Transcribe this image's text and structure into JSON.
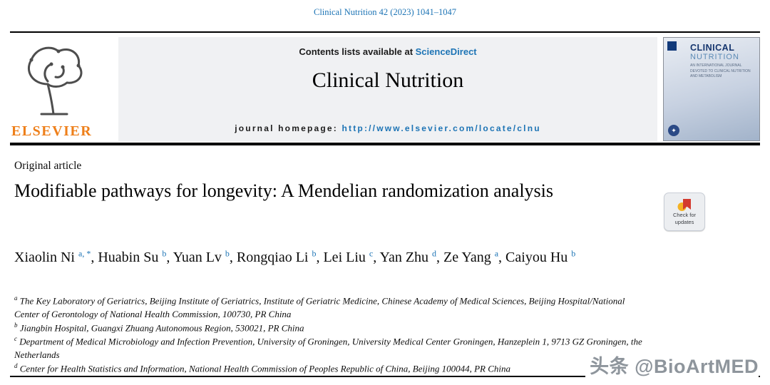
{
  "colors": {
    "accent": "#1d74b5",
    "elsevier_orange": "#ee7f1a",
    "watermark_gray": "#8e959c"
  },
  "header": {
    "citation": "Clinical Nutrition 42 (2023) 1041–1047"
  },
  "masthead": {
    "contents_prefix": "Contents lists available at ",
    "sciencedirect_link": "ScienceDirect",
    "journal_title": "Clinical Nutrition",
    "homepage_label": "journal homepage: ",
    "homepage_url": "http://www.elsevier.com/locate/clnu",
    "elsevier_wordmark": "ELSEVIER"
  },
  "cover": {
    "title_line1": "CLINICAL",
    "title_line2": "NUTRITION",
    "tagline": "AN INTERNATIONAL JOURNAL DEVOTED TO CLINICAL NUTRITION AND METABOLISM"
  },
  "crossmark": {
    "line1": "Check for",
    "line2": "updates"
  },
  "article": {
    "type_label": "Original article",
    "title": "Modifiable pathways for longevity: A Mendelian randomization analysis",
    "authors": [
      {
        "name": "Xiaolin Ni",
        "sup": "a, *"
      },
      {
        "name": "Huabin Su",
        "sup": "b"
      },
      {
        "name": "Yuan Lv",
        "sup": "b"
      },
      {
        "name": "Rongqiao Li",
        "sup": "b"
      },
      {
        "name": "Lei Liu",
        "sup": "c"
      },
      {
        "name": "Yan Zhu",
        "sup": "d"
      },
      {
        "name": "Ze Yang",
        "sup": "a"
      },
      {
        "name": "Caiyou Hu",
        "sup": "b"
      }
    ],
    "affiliations": [
      {
        "label": "a",
        "text": "The Key Laboratory of Geriatrics, Beijing Institute of Geriatrics, Institute of Geriatric Medicine, Chinese Academy of Medical Sciences, Beijing Hospital/National Center of Gerontology of National Health Commission, 100730, PR China"
      },
      {
        "label": "b",
        "text": "Jiangbin Hospital, Guangxi Zhuang Autonomous Region, 530021, PR China"
      },
      {
        "label": "c",
        "text": "Department of Medical Microbiology and Infection Prevention, University of Groningen, University Medical Center Groningen, Hanzeplein 1, 9713 GZ Groningen, the Netherlands"
      },
      {
        "label": "d",
        "text": "Center for Health Statistics and Information, National Health Commission of Peoples Republic of China, Beijing 100044, PR China"
      }
    ]
  },
  "watermark": "头条 @BioArtMED"
}
